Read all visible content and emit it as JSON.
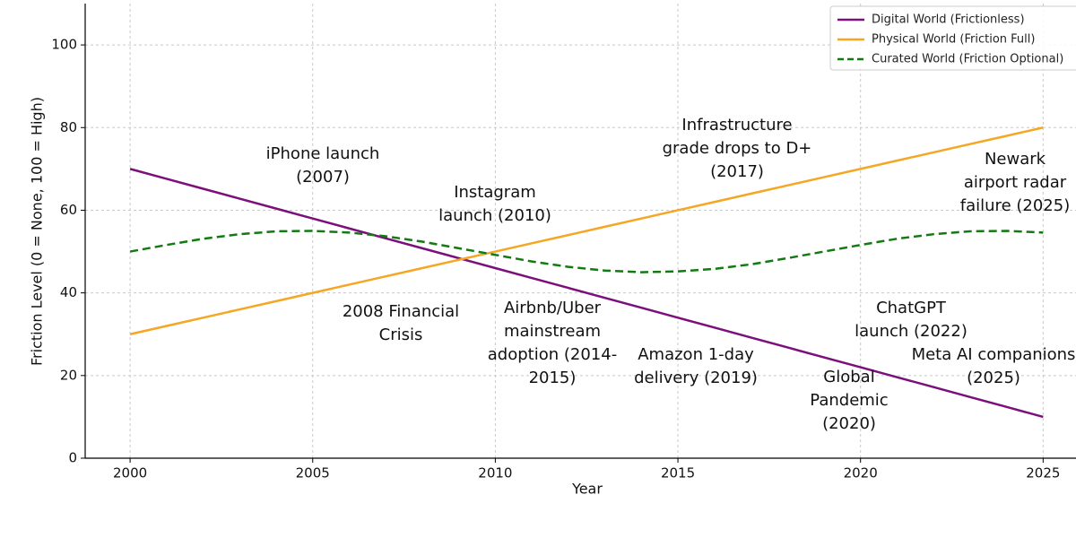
{
  "chart_data": {
    "type": "line",
    "x_label": "Year",
    "y_label": "Friction Level (0 = None, 100 = High)",
    "x": [
      2000,
      2001,
      2002,
      2003,
      2004,
      2005,
      2006,
      2007,
      2008,
      2009,
      2010,
      2011,
      2012,
      2013,
      2014,
      2015,
      2016,
      2017,
      2018,
      2019,
      2020,
      2021,
      2022,
      2023,
      2024,
      2025
    ],
    "series": [
      {
        "name": "Digital World (Frictionless)",
        "color": "#7b0f7b",
        "dash": false,
        "values": [
          70,
          67.6,
          65.2,
          62.8,
          60.4,
          58,
          55.6,
          53.2,
          50.8,
          48.4,
          46,
          43.6,
          41.2,
          38.8,
          36.4,
          34,
          31.6,
          29.2,
          26.8,
          24.4,
          22,
          19.6,
          17.2,
          14.8,
          12.4,
          10
        ]
      },
      {
        "name": "Physical World (Friction Full)",
        "color": "#f5a623",
        "dash": false,
        "values": [
          30,
          32,
          34,
          36,
          38,
          40,
          42,
          44,
          46,
          48,
          50,
          52,
          54,
          56,
          58,
          60,
          62,
          64,
          66,
          68,
          70,
          72,
          74,
          76,
          78,
          80
        ]
      },
      {
        "name": "Curated World (Friction Optional)",
        "color": "#137a13",
        "dash": true,
        "values": [
          50,
          51.6,
          53.1,
          54.2,
          54.9,
          55,
          54.6,
          53.7,
          52.4,
          50.8,
          49.2,
          47.6,
          46.3,
          45.4,
          45,
          45.2,
          45.8,
          46.9,
          48.4,
          50,
          51.6,
          53.1,
          54.2,
          54.9,
          55,
          54.6
        ]
      }
    ],
    "annotations": [
      [
        "iPhone launch",
        "(2007)"
      ],
      [
        "Instagram",
        "launch (2010)"
      ],
      [
        "Infrastructure",
        "grade drops to D+",
        "(2017)"
      ],
      [
        "Newark",
        "airport radar",
        "failure (2025)"
      ],
      [
        "2008 Financial",
        "Crisis"
      ],
      [
        "Airbnb/Uber",
        "mainstream",
        "adoption (2014-",
        "2015)"
      ],
      [
        "Amazon 1-day",
        "delivery (2019)"
      ],
      [
        "ChatGPT",
        "launch (2022)"
      ],
      [
        "Meta AI companions",
        "(2025)"
      ],
      [
        "Global",
        "Pandemic",
        "(2020)"
      ]
    ],
    "xlim": [
      1998.77,
      2025.9
    ],
    "ylim": [
      0,
      110
    ],
    "xticks": [
      2000,
      2005,
      2010,
      2015,
      2020,
      2025
    ],
    "yticks": [
      0,
      20,
      40,
      60,
      80,
      100
    ],
    "grid": true,
    "legend": "upper right"
  }
}
